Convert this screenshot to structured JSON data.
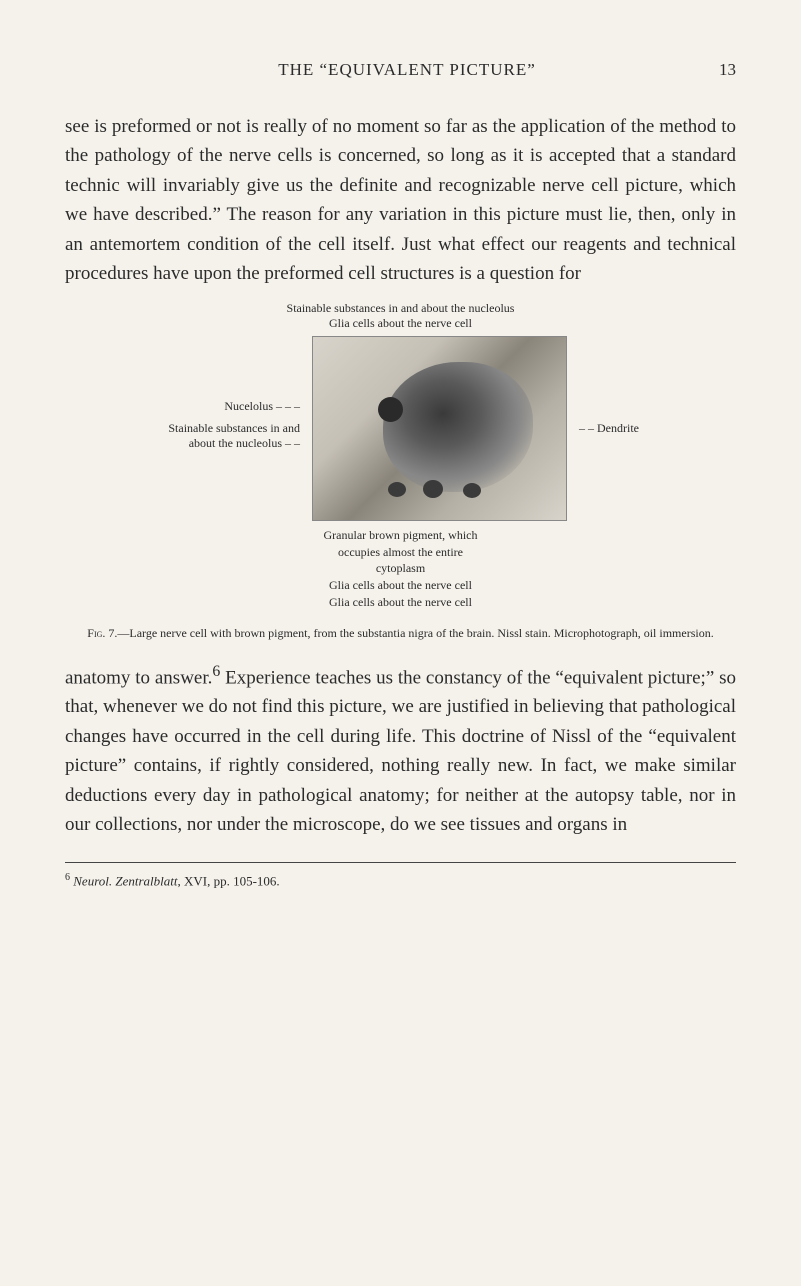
{
  "header": {
    "title": "THE “EQUIVALENT PICTURE”",
    "page_number": "13"
  },
  "paragraphs": {
    "p1": "see is preformed or not is really of no moment so far as the application of the method to the pathology of the nerve cells is concerned, so long as it is accepted that a standard technic will invariably give us the definite and recognizable nerve cell picture, which we have described.” The reason for any variation in this picture must lie, then, only in an antemortem condition of the cell itself. Just what effect our reagents and technical procedures have upon the preformed cell structures is a question for",
    "p2_part1": "anatomy to answer.",
    "p2_sup": "6",
    "p2_part2": " Experience teaches us the constancy of the “equivalent picture;” so that, whenever we do not find this picture, we are justified in believing that pathological changes have occurred in the cell during life. This doctrine of Nissl of the “equivalent picture” contains, if rightly considered, nothing really new. In fact, we make similar deductions every day in pathological anatomy; for neither at the autopsy table, nor in our collections, nor under the microscope, do we see tissues and organs in"
  },
  "figure": {
    "top_labels": {
      "line1": "Stainable substances in and about the nucleolus",
      "line2": "Glia cells about the nerve cell"
    },
    "left_labels": {
      "label1": "Nucelolus",
      "label2": "Stainable substances in and about the nucleolus"
    },
    "right_label": "Dendrite",
    "bottom_labels": {
      "line1": "Granular brown pigment, which",
      "line2": "occupies almost the entire",
      "line3": "cytoplasm",
      "line4": "Glia cells about the nerve cell",
      "line5": "Glia cells about the nerve cell"
    },
    "caption": {
      "prefix": "Fig. 7.",
      "text": "—Large nerve cell with brown pigment, from the substantia nigra of the brain. Nissl stain. Microphotograph, oil immersion."
    }
  },
  "footnote": {
    "marker": "6",
    "text_italic": "Neurol. Zentralblatt,",
    "text_rest": " XVI, pp. 105-106."
  },
  "colors": {
    "background": "#f5f2eb",
    "text": "#2b2b2b",
    "figure_bg_light": "#d8d4cb",
    "figure_bg_dark": "#8a857a",
    "blob_dark": "#3a3a3a"
  }
}
